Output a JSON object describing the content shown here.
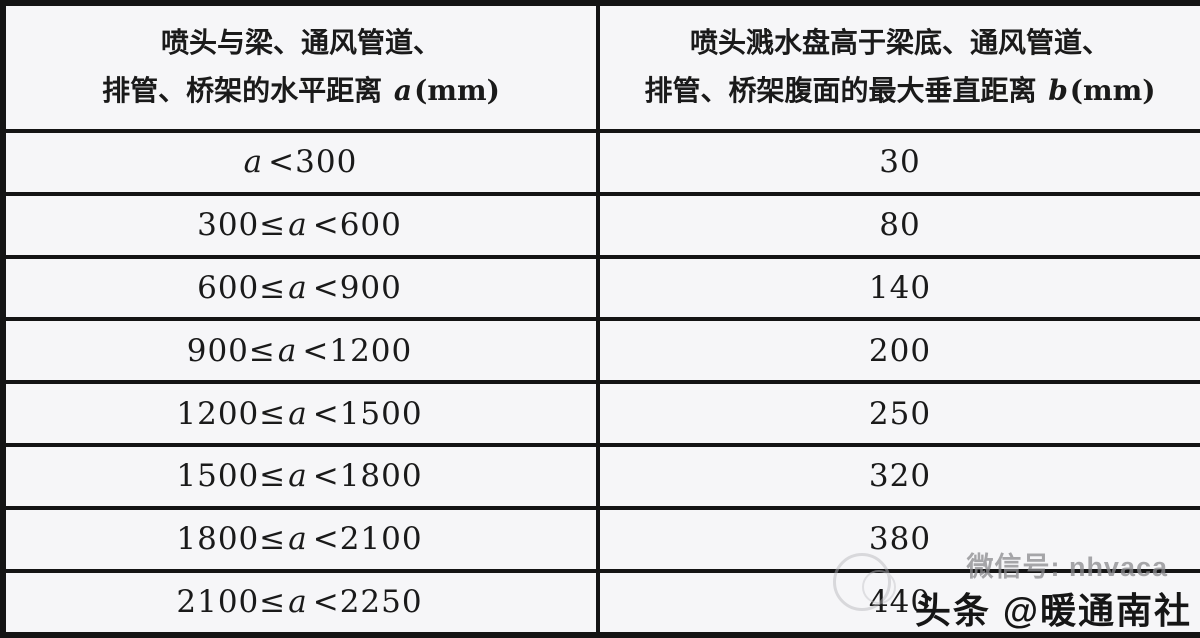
{
  "table": {
    "header_left": {
      "line1": "喷头与梁、通风管道、",
      "line2_pre": "排管、桥架的水平距离 ",
      "var": "a",
      "unit": "(mm)"
    },
    "header_right": {
      "line1": "喷头溅水盘高于梁底、通风管道、",
      "line2_pre": "排管、桥架腹面的最大垂直距离 ",
      "var": "b",
      "unit": "(mm)"
    },
    "rows": [
      {
        "pre": "",
        "var": "a",
        "post": "<300",
        "value": "30"
      },
      {
        "pre": "300≤",
        "var": "a",
        "post": "<600",
        "value": "80"
      },
      {
        "pre": "600≤",
        "var": "a",
        "post": "<900",
        "value": "140"
      },
      {
        "pre": "900≤",
        "var": "a",
        "post": "<1200",
        "value": "200"
      },
      {
        "pre": "1200≤",
        "var": "a",
        "post": "<1500",
        "value": "250"
      },
      {
        "pre": "1500≤",
        "var": "a",
        "post": "<1800",
        "value": "320"
      },
      {
        "pre": "1800≤",
        "var": "a",
        "post": "<2100",
        "value": "380"
      },
      {
        "pre": "2100≤",
        "var": "a",
        "post": "<2250",
        "value": "440"
      }
    ]
  },
  "watermark": {
    "line1": "微信号: nhvaca",
    "line2": "头条 @暖通南社"
  },
  "colors": {
    "border": "#141414",
    "text": "#1a1a1a",
    "background": "#f6f6f8",
    "watermark_gray": "#8a8a8e"
  }
}
